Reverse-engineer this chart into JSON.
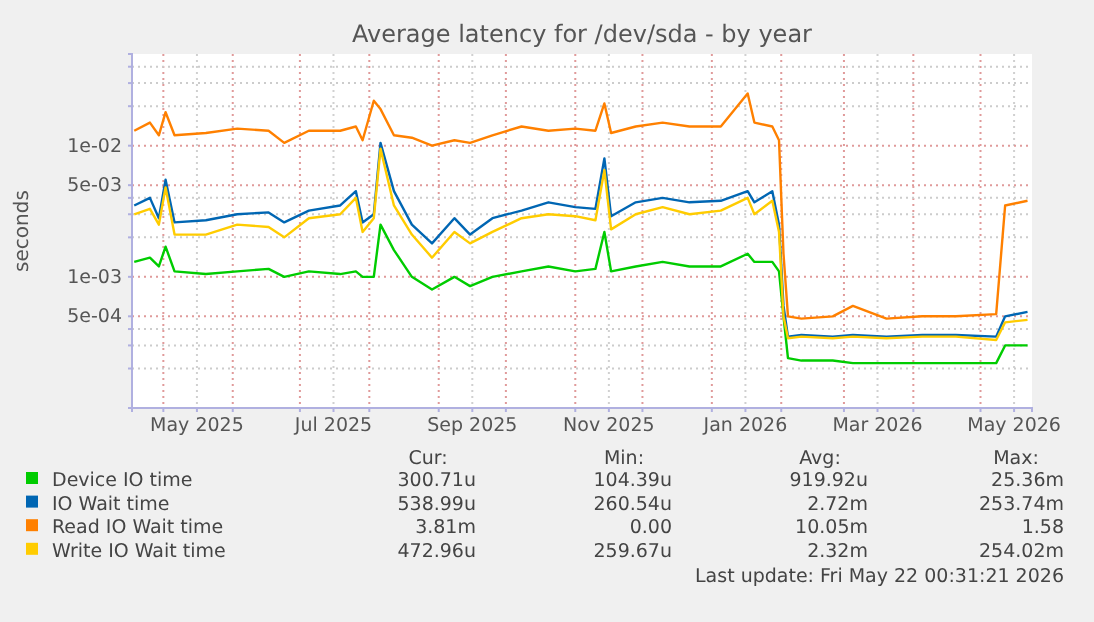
{
  "chart_data": {
    "type": "line",
    "title": "Average latency for /dev/sda - by year",
    "ylabel": "seconds",
    "log": true,
    "grid": true,
    "legend": "bottom",
    "xlim": [
      "2025-04-17",
      "2026-05-24"
    ],
    "ylim": [
      0.0001,
      0.05
    ],
    "xticks": [
      {
        "value": "2025-05-01",
        "label": null
      },
      {
        "value": "2025-05-16",
        "label": "May 2025"
      },
      {
        "value": "2025-06-01",
        "label": null
      },
      {
        "value": "2025-07-01",
        "label": null
      },
      {
        "value": "2025-07-16",
        "label": "Jul 2025"
      },
      {
        "value": "2025-08-01",
        "label": null
      },
      {
        "value": "2025-09-01",
        "label": null
      },
      {
        "value": "2025-09-16",
        "label": "Sep 2025"
      },
      {
        "value": "2025-10-01",
        "label": null
      },
      {
        "value": "2025-11-01",
        "label": null
      },
      {
        "value": "2025-11-16",
        "label": "Nov 2025"
      },
      {
        "value": "2025-12-01",
        "label": null
      },
      {
        "value": "2026-01-01",
        "label": null
      },
      {
        "value": "2026-01-16",
        "label": "Jan 2026"
      },
      {
        "value": "2026-02-01",
        "label": null
      },
      {
        "value": "2026-03-01",
        "label": null
      },
      {
        "value": "2026-03-16",
        "label": "Mar 2026"
      },
      {
        "value": "2026-04-01",
        "label": null
      },
      {
        "value": "2026-05-01",
        "label": null
      },
      {
        "value": "2026-05-16",
        "label": "May 2026"
      }
    ],
    "yticks": [
      {
        "value": 0.0002,
        "label": null
      },
      {
        "value": 0.0003,
        "label": null
      },
      {
        "value": 0.0004,
        "label": null
      },
      {
        "value": 0.0005,
        "label": "5e-04"
      },
      {
        "value": 0.001,
        "label": "1e-03"
      },
      {
        "value": 0.002,
        "label": null
      },
      {
        "value": 0.003,
        "label": null
      },
      {
        "value": 0.004,
        "label": null
      },
      {
        "value": 0.005,
        "label": "5e-03"
      },
      {
        "value": 0.01,
        "label": "1e-02"
      },
      {
        "value": 0.02,
        "label": null
      },
      {
        "value": 0.03,
        "label": null
      },
      {
        "value": 0.04,
        "label": null
      }
    ],
    "x": [
      "2025-04-18",
      "2025-04-25",
      "2025-04-29",
      "2025-05-02",
      "2025-05-06",
      "2025-05-20",
      "2025-06-03",
      "2025-06-17",
      "2025-06-24",
      "2025-07-05",
      "2025-07-19",
      "2025-07-26",
      "2025-07-29",
      "2025-08-03",
      "2025-08-06",
      "2025-08-12",
      "2025-08-20",
      "2025-08-29",
      "2025-09-08",
      "2025-09-15",
      "2025-09-25",
      "2025-10-08",
      "2025-10-20",
      "2025-11-01",
      "2025-11-10",
      "2025-11-14",
      "2025-11-17",
      "2025-11-28",
      "2025-12-10",
      "2025-12-22",
      "2026-01-05",
      "2026-01-17",
      "2026-01-20",
      "2026-01-28",
      "2026-01-31",
      "2026-02-02",
      "2026-02-04",
      "2026-02-10",
      "2026-02-24",
      "2026-03-05",
      "2026-03-20",
      "2026-04-05",
      "2026-04-20",
      "2026-05-08",
      "2026-05-12",
      "2026-05-22"
    ],
    "series": [
      {
        "name": "Device IO time",
        "color": "#00cc00",
        "values": [
          0.0013,
          0.0014,
          0.0012,
          0.0017,
          0.0011,
          0.00105,
          0.0011,
          0.00115,
          0.001,
          0.0011,
          0.00105,
          0.0011,
          0.001,
          0.001,
          0.0025,
          0.0016,
          0.001,
          0.0008,
          0.001,
          0.00085,
          0.001,
          0.0011,
          0.0012,
          0.0011,
          0.00115,
          0.0022,
          0.0011,
          0.0012,
          0.0013,
          0.0012,
          0.0012,
          0.0015,
          0.0013,
          0.0013,
          0.0011,
          0.0005,
          0.00024,
          0.00023,
          0.00023,
          0.00022,
          0.00022,
          0.00022,
          0.00022,
          0.00022,
          0.0003,
          0.0003
        ]
      },
      {
        "name": "IO Wait time",
        "color": "#0066b3",
        "values": [
          0.0035,
          0.004,
          0.0028,
          0.0055,
          0.0026,
          0.0027,
          0.003,
          0.0031,
          0.0026,
          0.0032,
          0.0035,
          0.0045,
          0.0026,
          0.003,
          0.0105,
          0.0045,
          0.0025,
          0.0018,
          0.0028,
          0.0021,
          0.0028,
          0.0032,
          0.0037,
          0.0034,
          0.0033,
          0.008,
          0.0029,
          0.0037,
          0.004,
          0.0037,
          0.0038,
          0.0045,
          0.0037,
          0.0045,
          0.0025,
          0.0006,
          0.00035,
          0.00036,
          0.00035,
          0.00036,
          0.00035,
          0.00036,
          0.00036,
          0.00035,
          0.0005,
          0.00054
        ]
      },
      {
        "name": "Read IO Wait time",
        "color": "#ff8000",
        "values": [
          0.013,
          0.015,
          0.012,
          0.018,
          0.012,
          0.0125,
          0.0135,
          0.013,
          0.0105,
          0.013,
          0.013,
          0.014,
          0.011,
          0.022,
          0.019,
          0.012,
          0.0115,
          0.01,
          0.011,
          0.0105,
          0.012,
          0.014,
          0.013,
          0.0135,
          0.013,
          0.021,
          0.0125,
          0.014,
          0.015,
          0.014,
          0.014,
          0.025,
          0.015,
          0.014,
          0.011,
          0.0015,
          0.0005,
          0.00048,
          0.0005,
          0.0006,
          0.00048,
          0.0005,
          0.0005,
          0.00052,
          0.0035,
          0.0038
        ]
      },
      {
        "name": "Write IO Wait time",
        "color": "#ffcc00",
        "values": [
          0.003,
          0.0033,
          0.0025,
          0.0048,
          0.0021,
          0.0021,
          0.0025,
          0.0024,
          0.002,
          0.0028,
          0.003,
          0.004,
          0.0022,
          0.0028,
          0.0095,
          0.0035,
          0.0021,
          0.0014,
          0.0022,
          0.0018,
          0.0022,
          0.0028,
          0.003,
          0.0029,
          0.0027,
          0.0065,
          0.0023,
          0.003,
          0.0034,
          0.003,
          0.0032,
          0.004,
          0.003,
          0.0038,
          0.0022,
          0.0005,
          0.00034,
          0.00035,
          0.00034,
          0.00035,
          0.00034,
          0.00035,
          0.00035,
          0.00033,
          0.00045,
          0.00047
        ]
      }
    ],
    "annotations": [
      "Cur:",
      "Min:",
      "Avg:",
      "Max:",
      "300.71u",
      "104.39u",
      "919.92u",
      "25.36m",
      "538.99u",
      "260.54u",
      "2.72m",
      "253.74m",
      "3.81m",
      "0.00",
      "10.05m",
      "1.58",
      "472.96u",
      "259.67u",
      "2.32m",
      "254.02m",
      "Last update: Fri May 22 00:31:21 2026"
    ]
  }
}
